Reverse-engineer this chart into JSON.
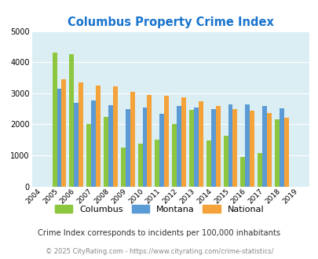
{
  "title": "Columbus Property Crime Index",
  "years": [
    "2004",
    "2005",
    "2006",
    "2007",
    "2008",
    "2009",
    "2010",
    "2011",
    "2012",
    "2013",
    "2014",
    "2015",
    "2016",
    "2017",
    "2018",
    "2019"
  ],
  "columbus": [
    0,
    4320,
    4250,
    2020,
    2250,
    1250,
    1390,
    1510,
    2010,
    2470,
    1490,
    1630,
    960,
    1070,
    2160,
    0
  ],
  "montana": [
    0,
    3140,
    2680,
    2760,
    2610,
    2480,
    2540,
    2330,
    2580,
    2540,
    2490,
    2640,
    2650,
    2600,
    2520,
    0
  ],
  "national": [
    0,
    3460,
    3360,
    3250,
    3220,
    3050,
    2950,
    2920,
    2880,
    2750,
    2600,
    2490,
    2450,
    2360,
    2200,
    0
  ],
  "columbus_color": "#8dc63f",
  "montana_color": "#5b9bd5",
  "national_color": "#f4a23a",
  "bg_color": "#daeef3",
  "ylim": [
    0,
    5000
  ],
  "yticks": [
    0,
    1000,
    2000,
    3000,
    4000,
    5000
  ],
  "subtitle": "Crime Index corresponds to incidents per 100,000 inhabitants",
  "footer": "© 2025 CityRating.com - https://www.cityrating.com/crime-statistics/",
  "title_color": "#1874cd",
  "subtitle_color": "#333333",
  "footer_color": "#888888",
  "bar_width": 0.27
}
